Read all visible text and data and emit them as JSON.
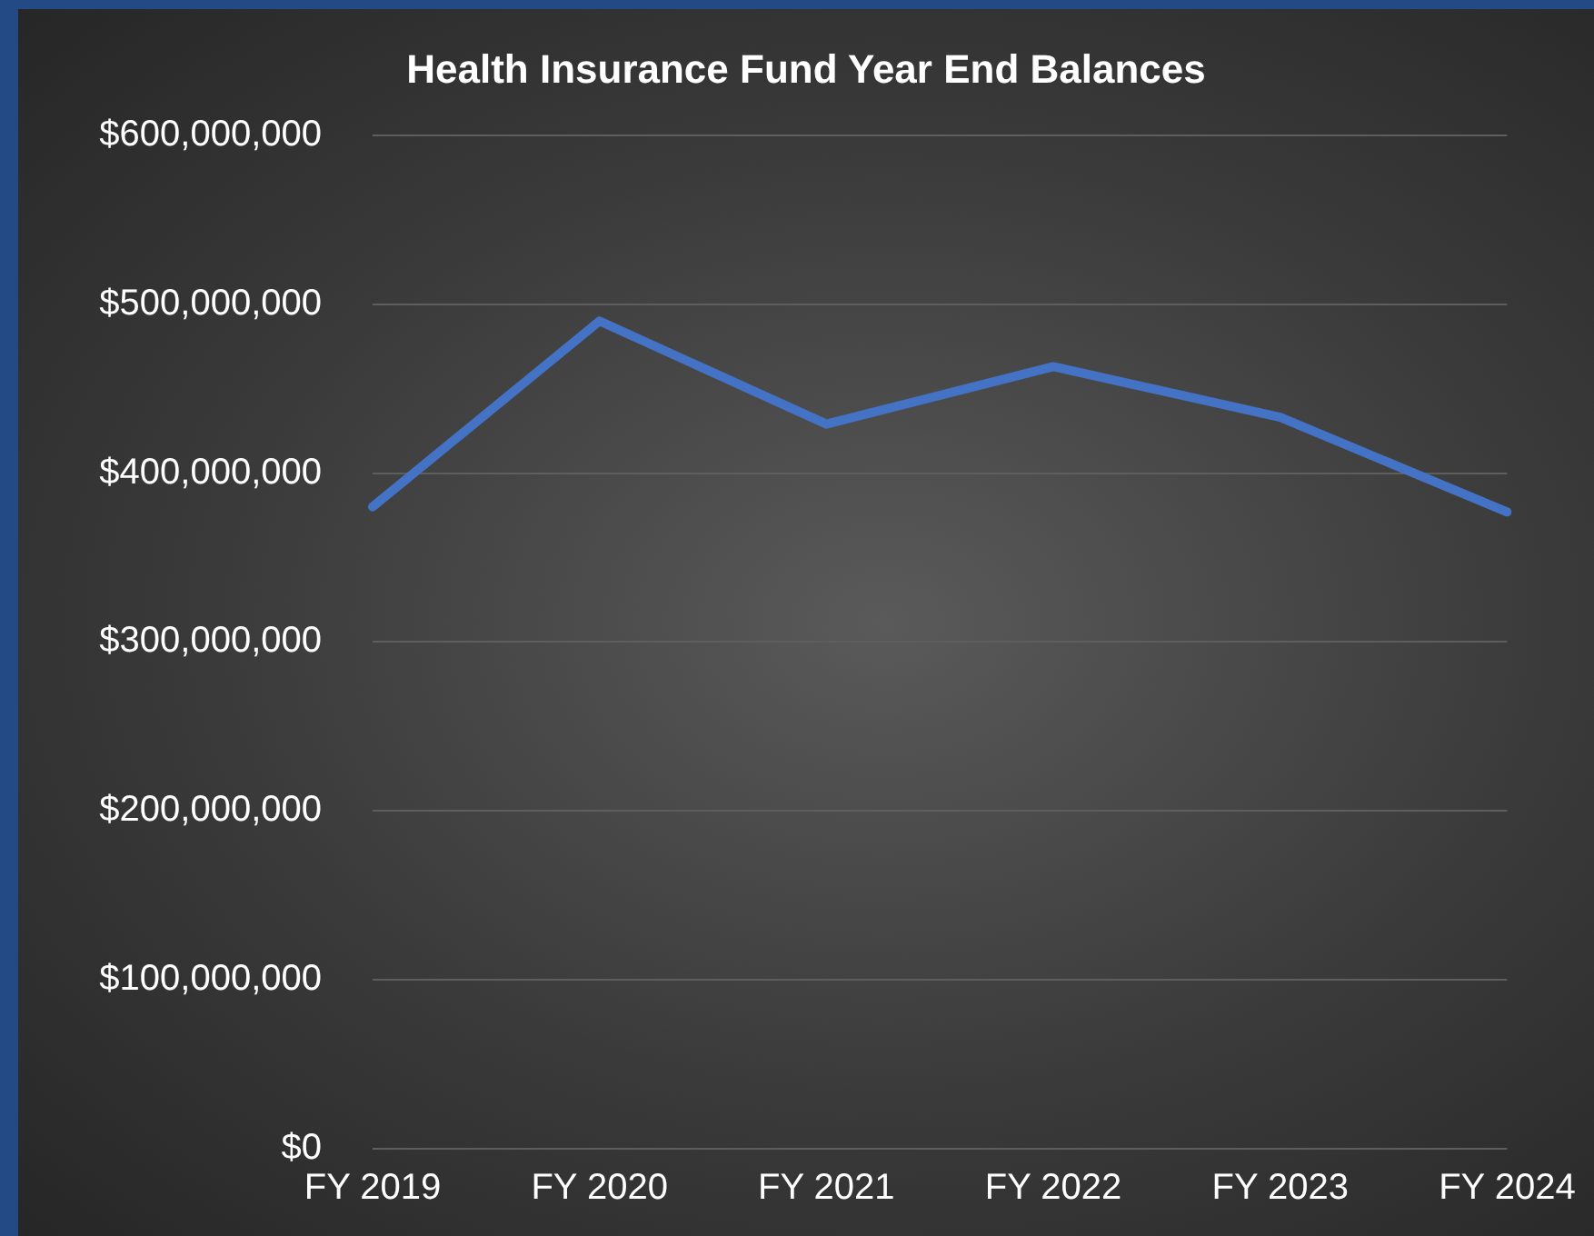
{
  "chart_data": {
    "type": "line",
    "title": "Health Insurance Fund Year End Balances",
    "categories": [
      "FY 2019",
      "FY 2020",
      "FY 2021",
      "FY 2022",
      "FY 2023",
      "FY 2024"
    ],
    "series": [
      {
        "color": "#4472c4",
        "values": [
          380000000,
          490000000,
          429000000,
          463000000,
          433000000,
          377000000
        ]
      }
    ],
    "ylim": [
      0,
      600000000
    ],
    "yticks": [
      {
        "value": 0,
        "label": "$0"
      },
      {
        "value": 100000000,
        "label": "$100,000,000"
      },
      {
        "value": 200000000,
        "label": "$200,000,000"
      },
      {
        "value": 300000000,
        "label": "$300,000,000"
      },
      {
        "value": 400000000,
        "label": "$400,000,000"
      },
      {
        "value": 500000000,
        "label": "$500,000,000"
      },
      {
        "value": 600000000,
        "label": "$600,000,000"
      }
    ],
    "grid": "y",
    "legend": false,
    "marker": "none",
    "line_style": "solid"
  }
}
